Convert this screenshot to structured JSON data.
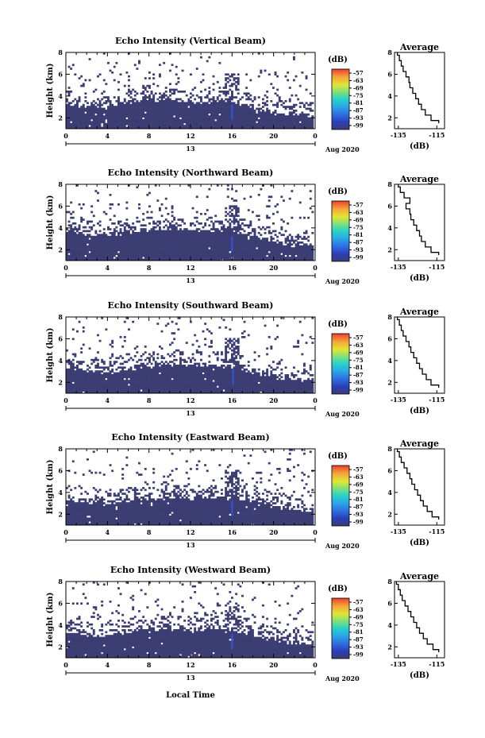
{
  "figure": {
    "xlabel_bottom": "Local Time",
    "date_label": "Aug 2020",
    "day_label": "13",
    "colorbar_unit": "(dB)",
    "colorbar_ticks": [
      "-57",
      "-63",
      "-69",
      "-75",
      "-81",
      "-87",
      "-93",
      "-99"
    ],
    "colors": {
      "background": "#ffffff",
      "echo_fill": "#3b3d73",
      "spike": "#3355dd"
    }
  },
  "chart_data": [
    {
      "type": "heatmap",
      "title": "Echo Intensity (Vertical Beam)",
      "ylabel": "Height (km)",
      "x_ticks": [
        "0",
        "4",
        "8",
        "12",
        "16",
        "20",
        "0"
      ],
      "y_ticks": [
        "2",
        "4",
        "6",
        "8"
      ],
      "xlim": [
        0,
        24
      ],
      "ylim": [
        1,
        8
      ],
      "base_top_km": [
        3.2,
        3.1,
        3.0,
        2.9,
        2.9,
        3.1,
        3.3,
        3.4,
        3.5,
        3.6,
        3.7,
        3.6,
        3.4,
        3.4,
        3.5,
        3.6,
        3.5,
        3.2,
        2.9,
        2.6,
        2.4,
        2.3,
        2.3,
        2.2,
        2.2
      ],
      "spike_hour": 16.0,
      "average_profile": {
        "title": "Average",
        "xlabel": "(dB)",
        "x_ticks": [
          "-135",
          "-115"
        ],
        "y_ticks": [
          "2",
          "4",
          "6",
          "8"
        ],
        "xlim": [
          -137,
          -111
        ],
        "ylim": [
          1,
          8
        ],
        "heights": [
          1.5,
          2.0,
          2.5,
          3.0,
          3.5,
          4.0,
          4.5,
          5.0,
          5.5,
          6.0,
          6.5,
          7.0,
          7.5,
          8.0
        ],
        "values": [
          -114,
          -118,
          -121,
          -123,
          -124.5,
          -126,
          -127.5,
          -129,
          -129.5,
          -131,
          -132.5,
          -133.5,
          -134.5,
          -135.5
        ]
      }
    },
    {
      "type": "heatmap",
      "title": "Echo Intensity (Northward Beam)",
      "ylabel": "Height (km)",
      "x_ticks": [
        "0",
        "4",
        "8",
        "12",
        "16",
        "20",
        "0"
      ],
      "y_ticks": [
        "2",
        "4",
        "6",
        "8"
      ],
      "xlim": [
        0,
        24
      ],
      "ylim": [
        1,
        8
      ],
      "base_top_km": [
        3.6,
        3.5,
        3.4,
        3.4,
        3.3,
        3.4,
        3.6,
        3.7,
        3.8,
        3.8,
        3.9,
        3.9,
        3.7,
        3.7,
        3.7,
        3.8,
        3.7,
        3.5,
        3.2,
        2.9,
        2.7,
        2.5,
        2.4,
        2.3,
        2.2
      ],
      "spike_hour": 16.0,
      "average_profile": {
        "title": "Average",
        "xlabel": "(dB)",
        "x_ticks": [
          "-135",
          "-115"
        ],
        "y_ticks": [
          "2",
          "4",
          "6",
          "8"
        ],
        "xlim": [
          -137,
          -111
        ],
        "ylim": [
          1,
          8
        ],
        "heights": [
          1.5,
          2.0,
          2.5,
          3.0,
          3.5,
          4.0,
          4.5,
          5.0,
          5.5,
          6.0,
          6.5,
          7.0,
          7.5,
          8.0
        ],
        "values": [
          -114,
          -118,
          -121,
          -123,
          -124,
          -125.5,
          -127,
          -128.5,
          -129,
          -131,
          -129,
          -132,
          -134,
          -135
        ]
      }
    },
    {
      "type": "heatmap",
      "title": "Echo Intensity (Southward Beam)",
      "ylabel": "Height (km)",
      "x_ticks": [
        "0",
        "4",
        "8",
        "12",
        "16",
        "20",
        "0"
      ],
      "y_ticks": [
        "2",
        "4",
        "6",
        "8"
      ],
      "xlim": [
        0,
        24
      ],
      "ylim": [
        1,
        8
      ],
      "base_top_km": [
        3.3,
        3.2,
        3.0,
        3.0,
        2.9,
        3.0,
        3.2,
        3.3,
        3.4,
        3.5,
        3.6,
        3.6,
        3.4,
        3.4,
        3.5,
        3.5,
        3.4,
        3.2,
        2.9,
        2.6,
        2.4,
        2.3,
        2.3,
        2.2,
        2.2
      ],
      "spike_hour": 16.1,
      "average_profile": {
        "title": "Average",
        "xlabel": "(dB)",
        "x_ticks": [
          "-135",
          "-115"
        ],
        "y_ticks": [
          "2",
          "4",
          "6",
          "8"
        ],
        "xlim": [
          -137,
          -111
        ],
        "ylim": [
          1,
          8
        ],
        "heights": [
          1.5,
          2.0,
          2.5,
          3.0,
          3.5,
          4.0,
          4.5,
          5.0,
          5.5,
          6.0,
          6.5,
          7.0,
          7.5,
          8.0
        ],
        "values": [
          -114,
          -118,
          -120.5,
          -122.5,
          -124,
          -125.5,
          -127,
          -128.5,
          -129.5,
          -131,
          -132.5,
          -133.5,
          -134.5,
          -135.5
        ]
      }
    },
    {
      "type": "heatmap",
      "title": "Echo Intensity (Eastward Beam)",
      "ylabel": "Height (km)",
      "x_ticks": [
        "0",
        "4",
        "8",
        "12",
        "16",
        "20",
        "0"
      ],
      "y_ticks": [
        "2",
        "4",
        "6",
        "8"
      ],
      "xlim": [
        0,
        24
      ],
      "ylim": [
        1,
        8
      ],
      "base_top_km": [
        3.2,
        3.1,
        3.0,
        2.9,
        2.9,
        3.0,
        3.1,
        3.2,
        3.3,
        3.4,
        3.5,
        3.5,
        3.4,
        3.4,
        3.4,
        3.5,
        3.5,
        3.4,
        3.2,
        3.0,
        2.7,
        2.5,
        2.4,
        2.3,
        2.2
      ],
      "spike_hour": 16.0,
      "average_profile": {
        "title": "Average",
        "xlabel": "(dB)",
        "x_ticks": [
          "-135",
          "-115"
        ],
        "y_ticks": [
          "2",
          "4",
          "6",
          "8"
        ],
        "xlim": [
          -137,
          -111
        ],
        "ylim": [
          1,
          8
        ],
        "heights": [
          1.5,
          2.0,
          2.5,
          3.0,
          3.5,
          4.0,
          4.5,
          5.0,
          5.5,
          6.0,
          6.5,
          7.0,
          7.5,
          8.0
        ],
        "values": [
          -114,
          -117.5,
          -120,
          -122,
          -123.5,
          -125,
          -126.5,
          -128,
          -129,
          -130.5,
          -132,
          -133.5,
          -134.5,
          -135.5
        ]
      }
    },
    {
      "type": "heatmap",
      "title": "Echo Intensity (Westward Beam)",
      "ylabel": "Height (km)",
      "x_ticks": [
        "0",
        "4",
        "8",
        "12",
        "16",
        "20",
        "0"
      ],
      "y_ticks": [
        "2",
        "4",
        "6",
        "8"
      ],
      "xlim": [
        0,
        24
      ],
      "ylim": [
        1,
        8
      ],
      "base_top_km": [
        3.3,
        3.2,
        3.1,
        3.0,
        3.0,
        3.1,
        3.3,
        3.4,
        3.5,
        3.5,
        3.6,
        3.6,
        3.5,
        3.5,
        3.6,
        3.6,
        3.5,
        3.3,
        3.0,
        2.7,
        2.5,
        2.4,
        2.3,
        2.2,
        2.2
      ],
      "spike_hour": 16.0,
      "average_profile": {
        "title": "Average",
        "xlabel": "(dB)",
        "x_ticks": [
          "-135",
          "-115"
        ],
        "y_ticks": [
          "2",
          "4",
          "6",
          "8"
        ],
        "xlim": [
          -137,
          -111
        ],
        "ylim": [
          1,
          8
        ],
        "heights": [
          1.5,
          2.0,
          2.5,
          3.0,
          3.5,
          4.0,
          4.5,
          5.0,
          5.5,
          6.0,
          6.5,
          7.0,
          7.5,
          8.0
        ],
        "values": [
          -114,
          -117,
          -120,
          -122,
          -124,
          -125.5,
          -127,
          -128.5,
          -130,
          -131.5,
          -133,
          -134,
          -135,
          -136
        ]
      }
    }
  ]
}
